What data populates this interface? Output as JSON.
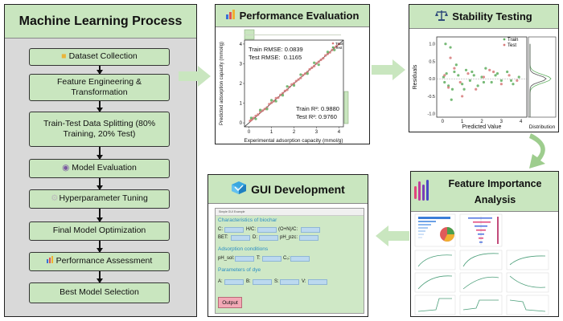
{
  "process": {
    "title": "Machine Learning Process",
    "steps": [
      "Dataset Collection",
      "Feature Engineering & Transformation",
      "Train-Test Data Splitting (80% Training, 20% Test)",
      "Model Evaluation",
      "Hyperparameter Tuning",
      "Final Model Optimization",
      "Performance Assessment",
      "Best Model Selection"
    ]
  },
  "performance": {
    "title": "Performance Evaluation",
    "train_rmse": "Train RMSE: 0.0839",
    "test_rmse": "Test RMSE:  0.1165",
    "train_r2": "Train R²: 0.9880",
    "test_r2": "Test R²: 0.9760",
    "xlabel": "Experimental adsorption capacity (mmol/g)",
    "ylabel": "Predicted adsorption capacity (mmol/g)",
    "legend": [
      "Train",
      "Test"
    ],
    "ticks": [
      "0",
      "1",
      "2",
      "3",
      "4"
    ]
  },
  "stability": {
    "title": "Stability Testing",
    "xlabel": "Predicted Value",
    "ylabel": "Residuals",
    "distribution_label": "Distribution",
    "legend": [
      "Train",
      "Test"
    ],
    "xticks": [
      "0",
      "1",
      "2",
      "3",
      "4"
    ],
    "yticks": [
      "1.0",
      "0.5",
      "0.0",
      "-0.5",
      "-1.0"
    ]
  },
  "feature_importance": {
    "title": "Feature Importance Analysis"
  },
  "gui": {
    "title": "GUI Development",
    "window_title": "Simple GUI Example",
    "sections": [
      "Characteristics of biochar",
      "Adsorption conditions",
      "Parameters of dye"
    ],
    "fields_biochar": [
      "C:",
      "H/C:",
      "(O+N)/C:",
      "BET:",
      "D:",
      "pH_pzc:"
    ],
    "fields_adsorption": [
      "pH_sol:",
      "T:",
      "C₀:"
    ],
    "fields_dye": [
      "A:",
      "B:",
      "S:",
      "V:"
    ],
    "output_button": "Output"
  },
  "chart_data": [
    {
      "type": "scatter",
      "title": "Performance Evaluation",
      "xlabel": "Experimental adsorption capacity (mmol/g)",
      "ylabel": "Predicted adsorption capacity (mmol/g)",
      "xlim": [
        -0.2,
        4.2
      ],
      "ylim": [
        -0.2,
        4.2
      ],
      "series": [
        {
          "name": "Train",
          "color": "#d77a7a",
          "x": [
            0.05,
            0.1,
            0.15,
            0.2,
            0.3,
            0.4,
            0.5,
            0.6,
            0.7,
            0.8,
            0.9,
            1.0,
            1.1,
            1.2,
            1.3,
            1.4,
            1.5,
            1.6,
            1.7,
            1.8,
            1.9,
            2.0,
            2.1,
            2.2,
            2.3,
            2.4,
            2.5,
            2.6,
            2.7,
            2.8,
            2.9,
            3.0,
            3.1,
            3.2,
            3.3,
            3.4,
            3.5,
            3.6,
            3.7,
            3.8,
            3.9,
            4.0
          ],
          "y": [
            0.1,
            0.15,
            0.2,
            0.25,
            0.35,
            0.42,
            0.55,
            0.62,
            0.7,
            0.78,
            0.95,
            1.02,
            1.1,
            1.25,
            1.28,
            1.42,
            1.5,
            1.62,
            1.68,
            1.82,
            1.95,
            2.0,
            2.12,
            2.2,
            2.28,
            2.42,
            2.5,
            2.58,
            2.72,
            2.8,
            2.88,
            3.02,
            3.1,
            3.2,
            3.28,
            3.42,
            3.5,
            3.58,
            3.7,
            3.82,
            3.9,
            4.0
          ]
        },
        {
          "name": "Test",
          "color": "#5fae5f",
          "x": [
            0.1,
            0.3,
            0.5,
            0.8,
            1.0,
            1.2,
            1.5,
            1.7,
            2.0,
            2.3,
            2.6,
            2.9,
            3.1,
            3.5,
            3.8
          ],
          "y": [
            0.25,
            0.2,
            0.65,
            0.7,
            1.15,
            1.1,
            1.4,
            1.85,
            1.9,
            2.45,
            2.5,
            3.05,
            2.95,
            3.6,
            3.7
          ]
        }
      ]
    },
    {
      "type": "scatter",
      "title": "Stability Testing",
      "xlabel": "Predicted Value",
      "ylabel": "Residuals",
      "xlim": [
        -0.3,
        4.3
      ],
      "ylim": [
        -1.1,
        1.2
      ],
      "series": [
        {
          "name": "Train",
          "color": "#5fae5f",
          "x": [
            0.05,
            0.1,
            0.2,
            0.3,
            0.4,
            0.5,
            0.6,
            0.8,
            1.0,
            1.2,
            1.4,
            1.6,
            1.8,
            2.0,
            2.2,
            2.5,
            2.8,
            3.0,
            3.3,
            3.6,
            3.9,
            0.15,
            0.45,
            0.7,
            1.1,
            1.5,
            2.1,
            2.7,
            3.5
          ],
          "y": [
            0.05,
            -0.1,
            0.15,
            -0.2,
            0.9,
            -0.3,
            0.2,
            0.1,
            -0.15,
            0.25,
            -0.05,
            0.1,
            -0.2,
            0.05,
            0.3,
            -0.1,
            0.15,
            -0.05,
            0.2,
            -0.15,
            0.05,
            1.0,
            -0.6,
            0.4,
            -0.3,
            0.2,
            -0.1,
            0.1,
            -0.05
          ]
        },
        {
          "name": "Test",
          "color": "#d77a7a",
          "x": [
            0.1,
            0.3,
            0.6,
            0.9,
            1.3,
            1.7,
            2.1,
            2.6,
            3.0,
            3.4,
            3.8,
            0.4,
            1.0,
            2.4
          ],
          "y": [
            0.1,
            -0.25,
            0.3,
            -0.1,
            0.15,
            -0.3,
            0.05,
            0.2,
            -0.15,
            0.1,
            -0.05,
            0.6,
            -0.5,
            0.25
          ]
        }
      ]
    }
  ]
}
